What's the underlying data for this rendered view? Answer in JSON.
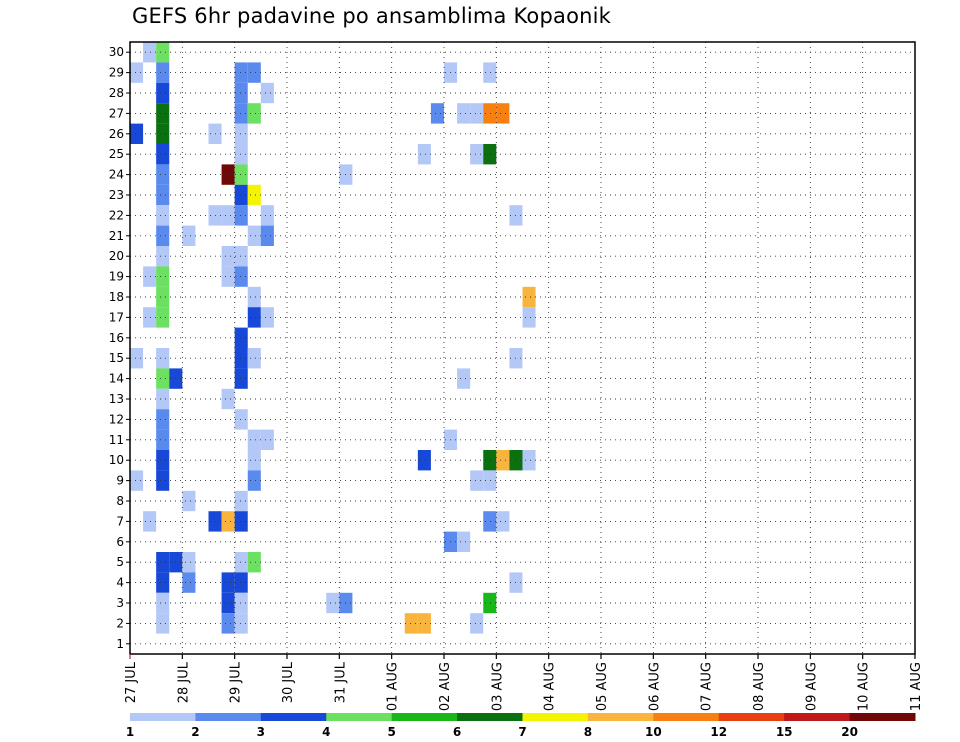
{
  "title": "GEFS 6hr padavine po ansamblima Kopaonik",
  "chart_data": {
    "type": "heatmap",
    "title": "GEFS 6hr padavine po ansamblima Kopaonik",
    "x_tick_labels": [
      "27 JUL",
      "28 JUL",
      "29 JUL",
      "30 JUL",
      "31 JUL",
      "01 AUG",
      "02 AUG",
      "03 AUG",
      "04 AUG",
      "05 AUG",
      "06 AUG",
      "07 AUG",
      "08 AUG",
      "09 AUG",
      "10 AUG",
      "11 AUG"
    ],
    "y_tick_labels": [
      "1",
      "2",
      "3",
      "4",
      "5",
      "6",
      "7",
      "8",
      "9",
      "10",
      "11",
      "12",
      "13",
      "14",
      "15",
      "16",
      "17",
      "18",
      "19",
      "20",
      "21",
      "22",
      "23",
      "24",
      "25",
      "26",
      "27",
      "28",
      "29",
      "30"
    ],
    "ylim": [
      1,
      30
    ],
    "grid": true,
    "steps_per_day": 4,
    "colorbar": {
      "thresholds": [
        "1",
        "2",
        "3",
        "4",
        "5",
        "6",
        "7",
        "8",
        "10",
        "12",
        "15",
        "20"
      ],
      "colors": [
        "#b4c8f8",
        "#5a8aee",
        "#1848d8",
        "#6ce060",
        "#18b818",
        "#0a7010",
        "#f4f400",
        "#f8b43c",
        "#f88010",
        "#e84010",
        "#c01818",
        "#700808"
      ],
      "placement": "bottom"
    },
    "cells": [
      [
        1,
        30,
        1
      ],
      [
        2,
        30,
        4
      ],
      [
        0,
        29,
        1
      ],
      [
        2,
        29,
        2
      ],
      [
        8,
        29,
        2
      ],
      [
        9,
        29,
        2
      ],
      [
        24,
        29,
        1
      ],
      [
        27,
        29,
        1
      ],
      [
        2,
        28,
        3
      ],
      [
        8,
        28,
        2
      ],
      [
        10,
        28,
        1
      ],
      [
        2,
        27,
        6
      ],
      [
        8,
        27,
        2
      ],
      [
        9,
        27,
        4
      ],
      [
        23,
        27,
        2
      ],
      [
        25,
        27,
        1
      ],
      [
        26,
        27,
        1
      ],
      [
        27,
        27,
        10
      ],
      [
        28,
        27,
        10
      ],
      [
        0,
        26,
        3
      ],
      [
        2,
        26,
        6
      ],
      [
        6,
        26,
        1
      ],
      [
        8,
        26,
        1
      ],
      [
        2,
        25,
        3
      ],
      [
        8,
        25,
        1
      ],
      [
        22,
        25,
        1
      ],
      [
        26,
        25,
        1
      ],
      [
        27,
        25,
        6
      ],
      [
        2,
        24,
        2
      ],
      [
        7,
        24,
        20
      ],
      [
        8,
        24,
        4
      ],
      [
        16,
        24,
        1
      ],
      [
        2,
        23,
        2
      ],
      [
        8,
        23,
        3
      ],
      [
        9,
        23,
        7
      ],
      [
        2,
        22,
        1
      ],
      [
        6,
        22,
        1
      ],
      [
        7,
        22,
        1
      ],
      [
        8,
        22,
        2
      ],
      [
        10,
        22,
        1
      ],
      [
        29,
        22,
        1
      ],
      [
        2,
        21,
        2
      ],
      [
        4,
        21,
        1
      ],
      [
        9,
        21,
        1
      ],
      [
        10,
        21,
        2
      ],
      [
        2,
        20,
        1
      ],
      [
        7,
        20,
        1
      ],
      [
        8,
        20,
        1
      ],
      [
        1,
        19,
        1
      ],
      [
        2,
        19,
        4
      ],
      [
        7,
        19,
        1
      ],
      [
        8,
        19,
        2
      ],
      [
        2,
        18,
        4
      ],
      [
        9,
        18,
        1
      ],
      [
        30,
        18,
        8
      ],
      [
        1,
        17,
        1
      ],
      [
        2,
        17,
        4
      ],
      [
        9,
        17,
        3
      ],
      [
        10,
        17,
        1
      ],
      [
        30,
        17,
        1
      ],
      [
        8,
        16,
        3
      ],
      [
        0,
        15,
        1
      ],
      [
        2,
        15,
        1
      ],
      [
        8,
        15,
        3
      ],
      [
        9,
        15,
        1
      ],
      [
        29,
        15,
        1
      ],
      [
        2,
        14,
        4
      ],
      [
        3,
        14,
        3
      ],
      [
        8,
        14,
        3
      ],
      [
        25,
        14,
        1
      ],
      [
        2,
        13,
        1
      ],
      [
        7,
        13,
        1
      ],
      [
        2,
        12,
        2
      ],
      [
        8,
        12,
        1
      ],
      [
        2,
        11,
        2
      ],
      [
        9,
        11,
        1
      ],
      [
        10,
        11,
        1
      ],
      [
        24,
        11,
        1
      ],
      [
        2,
        10,
        3
      ],
      [
        9,
        10,
        1
      ],
      [
        22,
        10,
        3
      ],
      [
        27,
        10,
        6
      ],
      [
        28,
        10,
        8
      ],
      [
        29,
        10,
        6
      ],
      [
        30,
        10,
        1
      ],
      [
        0,
        9,
        1
      ],
      [
        2,
        9,
        3
      ],
      [
        9,
        9,
        2
      ],
      [
        26,
        9,
        1
      ],
      [
        27,
        9,
        1
      ],
      [
        4,
        8,
        1
      ],
      [
        8,
        8,
        1
      ],
      [
        1,
        7,
        1
      ],
      [
        6,
        7,
        3
      ],
      [
        7,
        7,
        8
      ],
      [
        8,
        7,
        3
      ],
      [
        27,
        7,
        2
      ],
      [
        28,
        7,
        1
      ],
      [
        24,
        6,
        2
      ],
      [
        25,
        6,
        1
      ],
      [
        2,
        5,
        3
      ],
      [
        3,
        5,
        3
      ],
      [
        4,
        5,
        1
      ],
      [
        8,
        5,
        1
      ],
      [
        9,
        5,
        4
      ],
      [
        2,
        4,
        3
      ],
      [
        4,
        4,
        2
      ],
      [
        7,
        4,
        3
      ],
      [
        8,
        4,
        3
      ],
      [
        29,
        4,
        1
      ],
      [
        2,
        3,
        1
      ],
      [
        7,
        3,
        3
      ],
      [
        8,
        3,
        1
      ],
      [
        15,
        3,
        1
      ],
      [
        16,
        3,
        2
      ],
      [
        27,
        3,
        5
      ],
      [
        2,
        2,
        1
      ],
      [
        7,
        2,
        2
      ],
      [
        8,
        2,
        1
      ],
      [
        21,
        2,
        8
      ],
      [
        22,
        2,
        8
      ],
      [
        26,
        2,
        1
      ]
    ]
  }
}
